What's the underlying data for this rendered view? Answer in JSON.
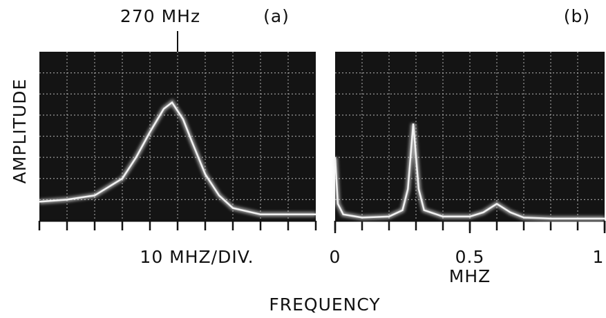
{
  "ylabel": "AMPLITUDE",
  "xlabel": "FREQUENCY",
  "chart_data": [
    {
      "type": "line",
      "panel": "(a)",
      "x_axis_label": "10 MHZ/DIV.",
      "annotation": {
        "text": "270 MHz",
        "x": 270
      },
      "x": [
        220,
        230,
        240,
        250,
        255,
        260,
        265,
        268,
        272,
        275,
        280,
        285,
        290,
        300,
        310,
        320
      ],
      "values": [
        0.9,
        1.0,
        1.2,
        2.0,
        3.0,
        4.2,
        5.3,
        5.6,
        4.8,
        3.8,
        2.2,
        1.2,
        0.6,
        0.3,
        0.3,
        0.3
      ],
      "color": "#f2f2f2",
      "xlim": [
        220,
        320
      ],
      "ylim": [
        0,
        8
      ],
      "grid": true
    },
    {
      "type": "line",
      "panel": "(b)",
      "x_axis_label": "MHZ",
      "x": [
        0,
        0.01,
        0.03,
        0.1,
        0.2,
        0.25,
        0.27,
        0.29,
        0.31,
        0.33,
        0.4,
        0.5,
        0.55,
        0.6,
        0.65,
        0.7,
        0.8,
        1
      ],
      "values": [
        3.0,
        0.8,
        0.3,
        0.15,
        0.2,
        0.5,
        1.5,
        4.6,
        1.5,
        0.5,
        0.2,
        0.2,
        0.4,
        0.8,
        0.4,
        0.15,
        0.1,
        0.1
      ],
      "color": "#f2f2f2",
      "xlim": [
        0,
        1
      ],
      "ylim": [
        0,
        8
      ],
      "xticks": [
        0,
        0.5,
        1
      ],
      "grid": true
    }
  ]
}
